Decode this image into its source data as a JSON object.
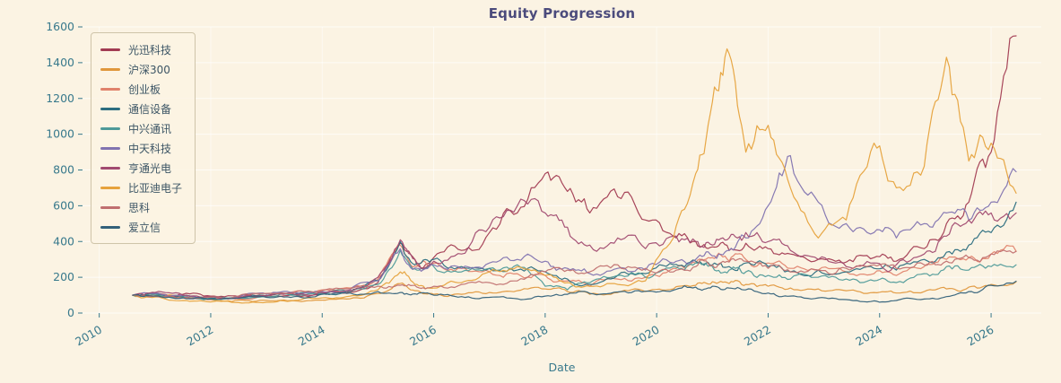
{
  "chart_data": {
    "type": "line",
    "title": "Equity Progression",
    "xlabel": "Date",
    "ylabel": "",
    "xlim": [
      2009.7,
      2026.9
    ],
    "ylim": [
      0,
      1600
    ],
    "xticks": [
      2010,
      2012,
      2014,
      2016,
      2018,
      2020,
      2022,
      2024,
      2026
    ],
    "yticks": [
      0,
      200,
      400,
      600,
      800,
      1000,
      1200,
      1400,
      1600
    ],
    "grid": true,
    "legend_position": "upper-left",
    "x": [
      2010.6,
      2011.0,
      2011.5,
      2012.0,
      2012.5,
      2013.0,
      2013.5,
      2014.0,
      2014.5,
      2015.0,
      2015.4,
      2015.7,
      2016.0,
      2016.5,
      2017.0,
      2017.5,
      2018.0,
      2018.4,
      2018.8,
      2019.3,
      2019.8,
      2020.3,
      2020.7,
      2021.0,
      2021.3,
      2021.6,
      2022.0,
      2022.4,
      2022.9,
      2023.4,
      2023.9,
      2024.3,
      2024.8,
      2025.2,
      2025.6,
      2026.0,
      2026.45
    ],
    "series": [
      {
        "name": "光迅科技",
        "color": "#A23B52",
        "values": [
          100,
          112,
          105,
          95,
          92,
          98,
          102,
          108,
          118,
          170,
          390,
          270,
          310,
          350,
          450,
          560,
          780,
          680,
          560,
          650,
          520,
          430,
          400,
          370,
          350,
          390,
          360,
          330,
          300,
          285,
          310,
          290,
          360,
          500,
          620,
          900,
          1550
        ]
      },
      {
        "name": "沪深300",
        "color": "#E0973C",
        "values": [
          100,
          97,
          88,
          75,
          72,
          70,
          68,
          72,
          80,
          110,
          165,
          125,
          105,
          105,
          115,
          125,
          135,
          120,
          105,
          115,
          120,
          135,
          155,
          175,
          165,
          160,
          150,
          140,
          135,
          125,
          115,
          112,
          120,
          135,
          145,
          160,
          175
        ]
      },
      {
        "name": "创业板",
        "color": "#E0826B",
        "values": [
          100,
          105,
          90,
          75,
          80,
          95,
          120,
          130,
          140,
          190,
          380,
          260,
          280,
          250,
          230,
          220,
          210,
          180,
          150,
          190,
          200,
          250,
          280,
          310,
          290,
          300,
          280,
          250,
          240,
          230,
          220,
          210,
          260,
          300,
          310,
          330,
          345
        ]
      },
      {
        "name": "通信设备",
        "color": "#2C6E80",
        "values": [
          100,
          108,
          95,
          85,
          85,
          95,
          105,
          110,
          120,
          180,
          400,
          280,
          300,
          260,
          250,
          240,
          230,
          190,
          160,
          210,
          220,
          270,
          290,
          270,
          260,
          280,
          260,
          230,
          240,
          230,
          250,
          240,
          300,
          340,
          380,
          450,
          620
        ]
      },
      {
        "name": "中兴通讯",
        "color": "#4E9A99",
        "values": [
          100,
          105,
          90,
          80,
          85,
          90,
          100,
          110,
          120,
          160,
          350,
          240,
          260,
          230,
          250,
          270,
          150,
          130,
          170,
          210,
          200,
          260,
          280,
          260,
          240,
          230,
          210,
          190,
          200,
          190,
          180,
          170,
          220,
          260,
          240,
          260,
          270
        ]
      },
      {
        "name": "中天科技",
        "color": "#8173B0",
        "values": [
          100,
          110,
          100,
          90,
          95,
          105,
          115,
          120,
          130,
          180,
          360,
          250,
          270,
          250,
          280,
          300,
          290,
          250,
          220,
          250,
          240,
          280,
          300,
          320,
          350,
          420,
          600,
          880,
          620,
          500,
          450,
          420,
          500,
          560,
          520,
          620,
          790
        ]
      },
      {
        "name": "亨通光电",
        "color": "#A14A70",
        "values": [
          100,
          115,
          100,
          90,
          88,
          95,
          105,
          115,
          125,
          200,
          410,
          280,
          290,
          330,
          480,
          600,
          560,
          480,
          380,
          420,
          360,
          430,
          400,
          380,
          420,
          450,
          400,
          350,
          300,
          260,
          280,
          270,
          330,
          430,
          520,
          560,
          560
        ]
      },
      {
        "name": "比亚迪电子",
        "color": "#E6A23C",
        "values": [
          100,
          90,
          70,
          62,
          58,
          60,
          70,
          85,
          95,
          130,
          230,
          160,
          140,
          170,
          230,
          260,
          210,
          170,
          150,
          160,
          180,
          420,
          780,
          1180,
          1450,
          900,
          1050,
          700,
          420,
          520,
          950,
          700,
          820,
          1430,
          850,
          950,
          670
        ]
      },
      {
        "name": "思科",
        "color": "#C06F6F",
        "values": [
          100,
          95,
          85,
          90,
          95,
          110,
          115,
          125,
          135,
          150,
          155,
          145,
          150,
          160,
          170,
          180,
          230,
          240,
          230,
          270,
          250,
          230,
          260,
          270,
          285,
          290,
          250,
          230,
          240,
          250,
          270,
          250,
          270,
          290,
          310,
          330,
          345
        ]
      },
      {
        "name": "爱立信",
        "color": "#33617A",
        "values": [
          100,
          96,
          85,
          78,
          82,
          88,
          92,
          105,
          112,
          120,
          115,
          105,
          100,
          92,
          88,
          80,
          95,
          105,
          110,
          118,
          122,
          128,
          145,
          150,
          140,
          130,
          112,
          95,
          85,
          75,
          68,
          70,
          78,
          92,
          120,
          155,
          178
        ]
      }
    ]
  },
  "colors": {
    "background": "#FBF3E3",
    "grid_line": "#FFFFFF",
    "tick_label": "#38798C",
    "title": "#4B4B7C",
    "legend_text": "#3C5565"
  }
}
